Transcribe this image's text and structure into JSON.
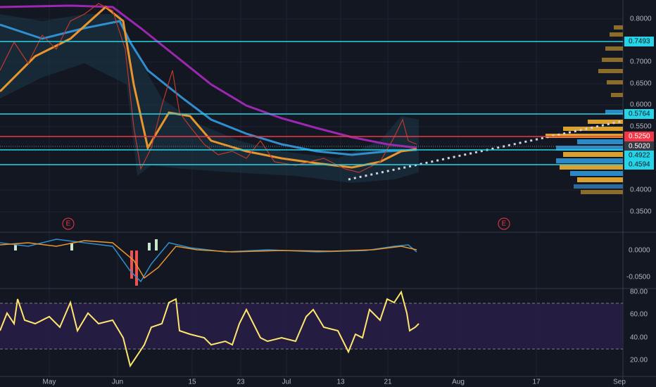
{
  "price_axis": {
    "ticks": [
      "0.8000",
      "0.7000",
      "0.6500",
      "0.6000",
      "0.5500",
      "0.4000",
      "0.3500"
    ],
    "levels": [
      "0.7493",
      "0.5764",
      "0.4922",
      "0.4594"
    ],
    "alert": "0.5250",
    "last": "0.5020"
  },
  "macd_axis": {
    "ticks": [
      "0.0000",
      "-0.0500"
    ]
  },
  "rsi_axis": {
    "ticks": [
      "80.00",
      "60.00",
      "40.00",
      "20.00"
    ]
  },
  "time_axis": {
    "labels": [
      "May",
      "Jun",
      "15",
      "23",
      "Jul",
      "13",
      "21",
      "Aug",
      "17",
      "Sep"
    ]
  },
  "markers": [
    "E",
    "E"
  ]
}
